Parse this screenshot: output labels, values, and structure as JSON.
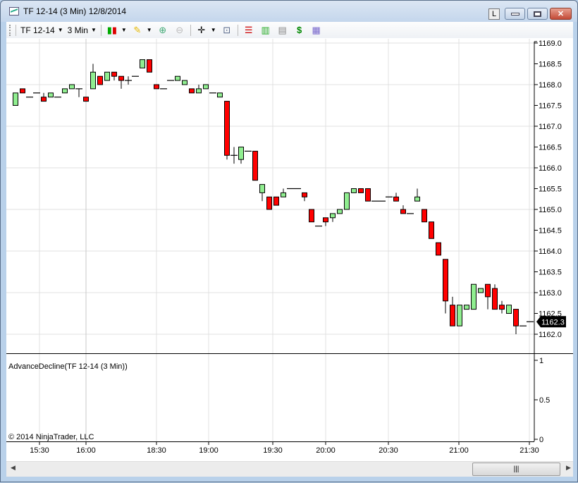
{
  "window": {
    "title": "TF 12-14 (3 Min)  12/8/2014",
    "link_button": "L",
    "minimize": "minimize",
    "maximize": "maximize",
    "close": "✕"
  },
  "toolbar": {
    "instrument": "TF 12-14",
    "interval": "3 Min",
    "icons": [
      "bar-type-icon",
      "drawing-tools-icon",
      "zoom-in-icon",
      "zoom-out-icon",
      "crosshair-icon",
      "zoom-box-icon",
      "data-series-icon",
      "indicators-icon",
      "strategies-icon",
      "trade-performance-icon",
      "properties-icon"
    ]
  },
  "indicator_panel": {
    "label": "AdvanceDecline(TF 12-14 (3 Min))",
    "yticks": [
      "1",
      "0.5",
      "0"
    ]
  },
  "copyright": "© 2014 NinjaTrader, LLC",
  "colors": {
    "up": "#90ee90",
    "down": "#ff0000",
    "grid": "#e0e0e0",
    "price_badge": "#000000"
  },
  "chart_data": {
    "type": "candlestick",
    "instrument": "TF 12-14",
    "interval": "3 Min",
    "date": "12/8/2014",
    "ylim": [
      1162.0,
      1169.0
    ],
    "yticks": [
      "1169.0",
      "1168.5",
      "1168.0",
      "1167.5",
      "1167.0",
      "1166.5",
      "1166.0",
      "1165.5",
      "1165.0",
      "1164.5",
      "1164.0",
      "1163.5",
      "1163.0",
      "1162.5",
      "1162.0"
    ],
    "xticks": [
      "15:30",
      "16:00",
      "18:30",
      "19:00",
      "19:30",
      "20:00",
      "20:30",
      "21:00",
      "21:30"
    ],
    "last_price": "1162.3",
    "grid": true,
    "bars_ohlc": [
      [
        1167.5,
        1167.8,
        1167.5,
        1167.8
      ],
      [
        1167.9,
        1167.9,
        1167.8,
        1167.8
      ],
      [
        1167.7,
        1167.7,
        1167.7,
        1167.7
      ],
      [
        1167.8,
        1167.8,
        1167.8,
        1167.8
      ],
      [
        1167.7,
        1167.8,
        1167.6,
        1167.6
      ],
      [
        1167.7,
        1167.8,
        1167.7,
        1167.8
      ],
      [
        1167.7,
        1167.7,
        1167.7,
        1167.7
      ],
      [
        1167.8,
        1167.9,
        1167.8,
        1167.9
      ],
      [
        1167.9,
        1168.0,
        1167.9,
        1168.0
      ],
      [
        1167.9,
        1167.9,
        1167.7,
        1167.9
      ],
      [
        1167.7,
        1167.7,
        1167.6,
        1167.6
      ],
      [
        1167.9,
        1168.5,
        1167.9,
        1168.3
      ],
      [
        1168.2,
        1168.2,
        1168.0,
        1168.0
      ],
      [
        1168.1,
        1168.3,
        1168.1,
        1168.3
      ],
      [
        1168.3,
        1168.3,
        1168.1,
        1168.2
      ],
      [
        1168.2,
        1168.2,
        1167.9,
        1168.1
      ],
      [
        1168.1,
        1168.2,
        1168.0,
        1168.1
      ],
      [
        1168.2,
        1168.2,
        1168.2,
        1168.2
      ],
      [
        1168.4,
        1168.6,
        1168.4,
        1168.6
      ],
      [
        1168.6,
        1168.6,
        1168.3,
        1168.3
      ],
      [
        1168.0,
        1168.0,
        1167.9,
        1167.9
      ],
      [
        1167.9,
        1167.9,
        1167.9,
        1167.9
      ],
      [
        1168.1,
        1168.1,
        1168.1,
        1168.1
      ],
      [
        1168.1,
        1168.2,
        1168.1,
        1168.2
      ],
      [
        1168.0,
        1168.1,
        1168.0,
        1168.1
      ],
      [
        1167.9,
        1167.9,
        1167.8,
        1167.8
      ],
      [
        1167.8,
        1168.0,
        1167.8,
        1167.9
      ],
      [
        1167.9,
        1168.0,
        1167.9,
        1168.0
      ],
      [
        1167.8,
        1167.8,
        1167.8,
        1167.8
      ],
      [
        1167.7,
        1167.8,
        1167.7,
        1167.8
      ],
      [
        1167.6,
        1167.6,
        1166.2,
        1166.3
      ],
      [
        1166.3,
        1166.5,
        1166.1,
        1166.3
      ],
      [
        1166.2,
        1166.5,
        1166.1,
        1166.5
      ],
      [
        1166.4,
        1166.4,
        1166.4,
        1166.4
      ],
      [
        1166.4,
        1166.4,
        1165.7,
        1165.7
      ],
      [
        1165.4,
        1165.6,
        1165.2,
        1165.6
      ],
      [
        1165.3,
        1165.3,
        1165.0,
        1165.0
      ],
      [
        1165.3,
        1165.3,
        1165.1,
        1165.1
      ],
      [
        1165.3,
        1165.5,
        1165.3,
        1165.4
      ],
      [
        1165.5,
        1165.5,
        1165.5,
        1165.5
      ],
      [
        1165.5,
        1165.5,
        1165.5,
        1165.5
      ],
      [
        1165.4,
        1165.4,
        1165.2,
        1165.3
      ],
      [
        1165.0,
        1165.0,
        1164.7,
        1164.7
      ],
      [
        1164.6,
        1164.6,
        1164.6,
        1164.6
      ],
      [
        1164.8,
        1164.8,
        1164.6,
        1164.7
      ],
      [
        1164.8,
        1164.9,
        1164.7,
        1164.9
      ],
      [
        1164.9,
        1165.0,
        1164.9,
        1165.0
      ],
      [
        1165.0,
        1165.4,
        1165.0,
        1165.4
      ],
      [
        1165.4,
        1165.5,
        1165.4,
        1165.5
      ],
      [
        1165.5,
        1165.5,
        1165.4,
        1165.4
      ],
      [
        1165.5,
        1165.5,
        1165.2,
        1165.2
      ],
      [
        1165.2,
        1165.2,
        1165.2,
        1165.2
      ],
      [
        1165.2,
        1165.2,
        1165.2,
        1165.2
      ],
      [
        1165.3,
        1165.3,
        1165.3,
        1165.3
      ],
      [
        1165.3,
        1165.4,
        1165.2,
        1165.2
      ],
      [
        1165.0,
        1165.1,
        1164.9,
        1164.9
      ],
      [
        1164.9,
        1164.9,
        1164.9,
        1164.9
      ],
      [
        1165.2,
        1165.5,
        1165.2,
        1165.3
      ],
      [
        1165.0,
        1165.0,
        1164.7,
        1164.7
      ],
      [
        1164.7,
        1164.7,
        1164.3,
        1164.3
      ],
      [
        1164.2,
        1164.2,
        1163.9,
        1163.9
      ],
      [
        1163.8,
        1163.8,
        1162.5,
        1162.8
      ],
      [
        1162.7,
        1162.9,
        1162.2,
        1162.2
      ],
      [
        1162.2,
        1162.7,
        1162.2,
        1162.7
      ],
      [
        1162.6,
        1162.7,
        1162.6,
        1162.7
      ],
      [
        1162.6,
        1163.2,
        1162.6,
        1163.2
      ],
      [
        1163.0,
        1163.1,
        1163.0,
        1163.1
      ],
      [
        1163.2,
        1163.2,
        1162.6,
        1162.9
      ],
      [
        1163.1,
        1163.2,
        1162.6,
        1162.6
      ],
      [
        1162.7,
        1162.8,
        1162.5,
        1162.6
      ],
      [
        1162.5,
        1162.7,
        1162.5,
        1162.7
      ],
      [
        1162.6,
        1162.6,
        1162.0,
        1162.2
      ],
      [
        1162.2,
        1162.2,
        1162.2,
        1162.2
      ],
      [
        1162.3,
        1162.3,
        1162.3,
        1162.3
      ]
    ]
  }
}
